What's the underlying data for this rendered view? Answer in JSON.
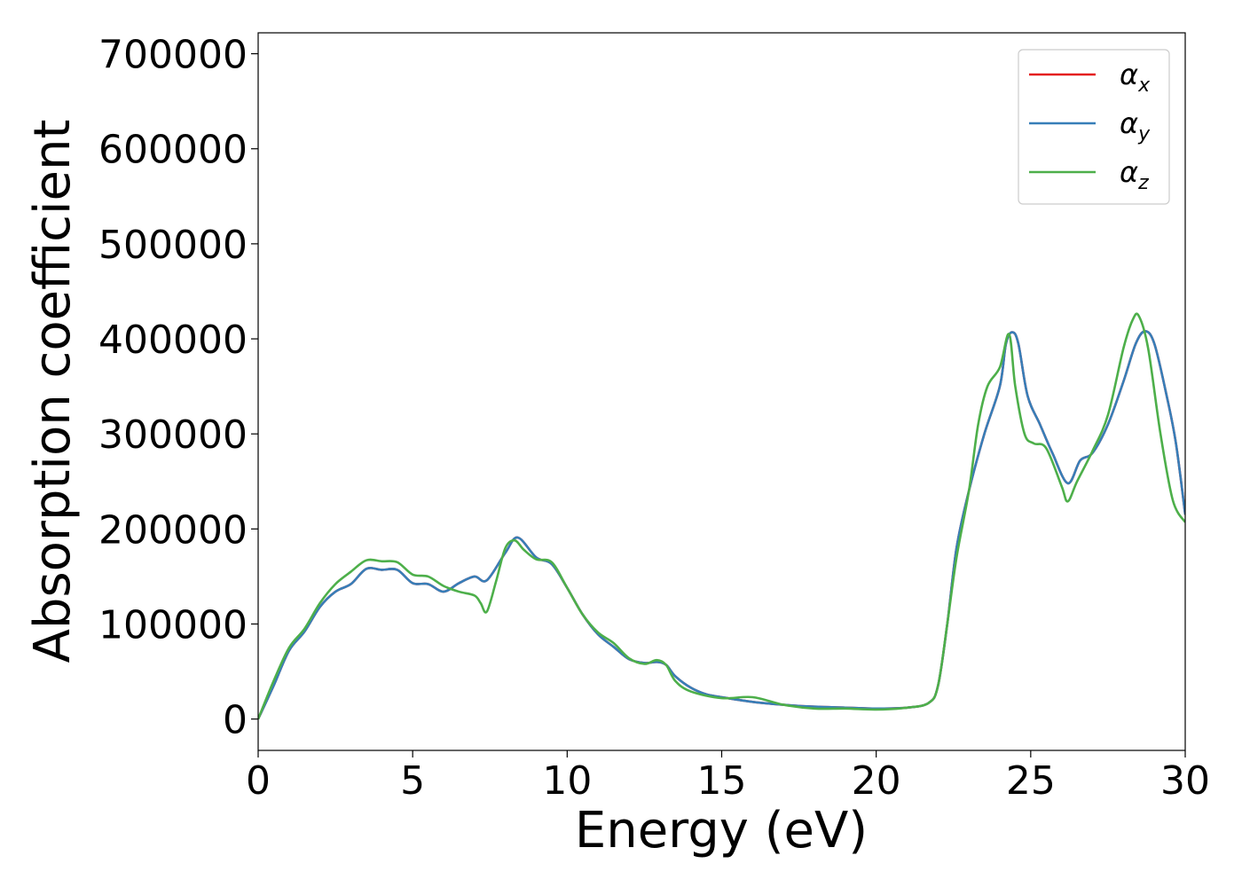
{
  "chart_data": {
    "type": "line",
    "title": "",
    "xlabel": "Energy (eV)",
    "ylabel": "Absorption coefficient",
    "xlim": [
      0,
      30
    ],
    "ylim": [
      -33000,
      722000
    ],
    "xticks": [
      0,
      5,
      10,
      15,
      20,
      25,
      30
    ],
    "xtick_labels": [
      "0",
      "5",
      "10",
      "15",
      "20",
      "25",
      "30"
    ],
    "yticks": [
      0,
      100000,
      200000,
      300000,
      400000,
      500000,
      600000,
      700000
    ],
    "ytick_labels": [
      "0",
      "100000",
      "200000",
      "300000",
      "400000",
      "500000",
      "600000",
      "700000"
    ],
    "grid": false,
    "legend_position": "top-right",
    "series": [
      {
        "name": "α",
        "subscript": "x",
        "color": "#e41a1c",
        "x": [
          0,
          0.5,
          1,
          1.5,
          2,
          2.5,
          3,
          3.5,
          4,
          4.5,
          5,
          5.5,
          6,
          6.5,
          7,
          7.4,
          8,
          8.4,
          9,
          9.5,
          10,
          10.5,
          11,
          11.5,
          12,
          12.5,
          12.9,
          13.2,
          13.5,
          14,
          14.5,
          15,
          16,
          17,
          18,
          19,
          20,
          21,
          21.7,
          22,
          22.3,
          22.6,
          23,
          23.5,
          24,
          24.2,
          24.4,
          24.6,
          24.9,
          25.3,
          25.7,
          26.2,
          26.6,
          27,
          27.5,
          28,
          28.4,
          28.7,
          29,
          29.4,
          29.7,
          30
        ],
        "y": [
          0,
          35000,
          72000,
          92000,
          118000,
          134000,
          142000,
          158000,
          157000,
          157000,
          143000,
          142000,
          134000,
          143000,
          150000,
          146000,
          175000,
          191000,
          170000,
          163000,
          138000,
          110000,
          89000,
          76000,
          63000,
          59000,
          60000,
          57000,
          45000,
          33000,
          26000,
          23000,
          18000,
          15000,
          13000,
          12000,
          11000,
          12000,
          17000,
          35000,
          100000,
          180000,
          240000,
          300000,
          350000,
          395000,
          407000,
          395000,
          340000,
          310000,
          280000,
          248000,
          272000,
          280000,
          310000,
          355000,
          395000,
          408000,
          395000,
          340000,
          290000,
          215000
        ]
      },
      {
        "name": "α",
        "subscript": "y",
        "color": "#377eb8",
        "x": [
          0,
          0.5,
          1,
          1.5,
          2,
          2.5,
          3,
          3.5,
          4,
          4.5,
          5,
          5.5,
          6,
          6.5,
          7,
          7.4,
          8,
          8.4,
          9,
          9.5,
          10,
          10.5,
          11,
          11.5,
          12,
          12.5,
          12.9,
          13.2,
          13.5,
          14,
          14.5,
          15,
          16,
          17,
          18,
          19,
          20,
          21,
          21.7,
          22,
          22.3,
          22.6,
          23,
          23.5,
          24,
          24.2,
          24.4,
          24.6,
          24.9,
          25.3,
          25.7,
          26.2,
          26.6,
          27,
          27.5,
          28,
          28.4,
          28.7,
          29,
          29.4,
          29.7,
          30
        ],
        "y": [
          0,
          35000,
          72000,
          92000,
          118000,
          134000,
          142000,
          158000,
          157000,
          157000,
          143000,
          142000,
          134000,
          143000,
          150000,
          146000,
          175000,
          191000,
          170000,
          163000,
          138000,
          110000,
          89000,
          76000,
          63000,
          59000,
          60000,
          57000,
          45000,
          33000,
          26000,
          23000,
          18000,
          15000,
          13000,
          12000,
          11000,
          12000,
          17000,
          35000,
          100000,
          180000,
          240000,
          300000,
          350000,
          395000,
          407000,
          395000,
          340000,
          310000,
          280000,
          248000,
          272000,
          280000,
          310000,
          355000,
          395000,
          408000,
          395000,
          340000,
          290000,
          215000
        ]
      },
      {
        "name": "α",
        "subscript": "z",
        "color": "#4daf4a",
        "x": [
          0,
          0.5,
          1,
          1.5,
          2,
          2.5,
          3,
          3.5,
          4,
          4.5,
          5,
          5.5,
          6,
          6.5,
          7,
          7.2,
          7.4,
          7.7,
          8,
          8.3,
          8.6,
          9,
          9.5,
          10,
          10.5,
          11,
          11.5,
          12,
          12.5,
          12.9,
          13.2,
          13.5,
          14,
          15,
          16,
          17,
          18,
          19,
          20,
          21,
          21.7,
          22,
          22.3,
          22.6,
          23,
          23.3,
          23.6,
          24,
          24.3,
          24.5,
          24.8,
          25.1,
          25.5,
          26,
          26.2,
          26.5,
          27,
          27.5,
          28,
          28.3,
          28.5,
          28.8,
          29.2,
          29.6,
          30
        ],
        "y": [
          0,
          40000,
          75000,
          95000,
          122000,
          142000,
          155000,
          167000,
          166000,
          165000,
          152000,
          150000,
          140000,
          134000,
          130000,
          122000,
          113000,
          145000,
          180000,
          188000,
          178000,
          168000,
          165000,
          138000,
          110000,
          91000,
          80000,
          64000,
          58000,
          62000,
          57000,
          40000,
          29000,
          22000,
          23000,
          15000,
          11000,
          11000,
          10000,
          12000,
          17000,
          35000,
          100000,
          170000,
          240000,
          310000,
          350000,
          370000,
          405000,
          350000,
          300000,
          290000,
          285000,
          245000,
          229000,
          250000,
          282000,
          320000,
          390000,
          420000,
          424000,
          390000,
          300000,
          230000,
          207000
        ]
      }
    ]
  }
}
